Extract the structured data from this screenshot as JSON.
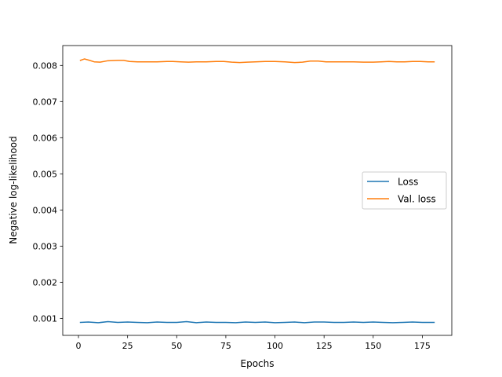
{
  "chart_data": {
    "type": "line",
    "xlabel": "Epochs",
    "ylabel": "Negative log-likelihood",
    "xlim": [
      -8,
      190
    ],
    "ylim": [
      0.00053,
      0.00855
    ],
    "xticks": [
      0,
      25,
      50,
      75,
      100,
      125,
      150,
      175
    ],
    "yticks": [
      0.001,
      0.002,
      0.003,
      0.004,
      0.005,
      0.006,
      0.007,
      0.008
    ],
    "ytick_labels": [
      "0.001",
      "0.002",
      "0.003",
      "0.004",
      "0.005",
      "0.006",
      "0.007",
      "0.008"
    ],
    "grid": false,
    "legend_position": "center-right",
    "series": [
      {
        "name": "Loss",
        "color": "#1f77b4",
        "x": [
          1,
          5,
          10,
          15,
          20,
          25,
          30,
          35,
          40,
          45,
          50,
          55,
          60,
          65,
          70,
          75,
          80,
          85,
          90,
          95,
          100,
          105,
          110,
          115,
          120,
          125,
          130,
          135,
          140,
          145,
          150,
          155,
          160,
          165,
          170,
          175,
          181
        ],
        "y": [
          0.00089,
          0.0009,
          0.00088,
          0.00091,
          0.00089,
          0.0009,
          0.00089,
          0.00088,
          0.0009,
          0.00089,
          0.00089,
          0.00091,
          0.00088,
          0.0009,
          0.00089,
          0.00089,
          0.00088,
          0.0009,
          0.00089,
          0.0009,
          0.00088,
          0.00089,
          0.0009,
          0.00088,
          0.0009,
          0.0009,
          0.00089,
          0.00089,
          0.0009,
          0.00089,
          0.0009,
          0.00089,
          0.00088,
          0.00089,
          0.0009,
          0.00089,
          0.00089
        ]
      },
      {
        "name": "Val. loss",
        "color": "#ff7f0e",
        "x": [
          1,
          3,
          5,
          8,
          11,
          15,
          20,
          23,
          26,
          30,
          35,
          40,
          45,
          48,
          52,
          56,
          60,
          65,
          70,
          74,
          78,
          82,
          86,
          90,
          95,
          100,
          105,
          110,
          114,
          118,
          122,
          126,
          130,
          135,
          140,
          145,
          150,
          154,
          158,
          162,
          166,
          170,
          174,
          178,
          181
        ],
        "y": [
          0.00814,
          0.00818,
          0.00815,
          0.0081,
          0.00809,
          0.00813,
          0.00814,
          0.00814,
          0.00811,
          0.0081,
          0.0081,
          0.0081,
          0.00811,
          0.00811,
          0.0081,
          0.00809,
          0.0081,
          0.0081,
          0.00811,
          0.00811,
          0.00809,
          0.00808,
          0.00809,
          0.0081,
          0.00811,
          0.00811,
          0.0081,
          0.00808,
          0.00809,
          0.00812,
          0.00812,
          0.0081,
          0.0081,
          0.0081,
          0.0081,
          0.00809,
          0.00809,
          0.0081,
          0.00811,
          0.0081,
          0.0081,
          0.00811,
          0.00811,
          0.0081,
          0.0081
        ]
      }
    ]
  }
}
